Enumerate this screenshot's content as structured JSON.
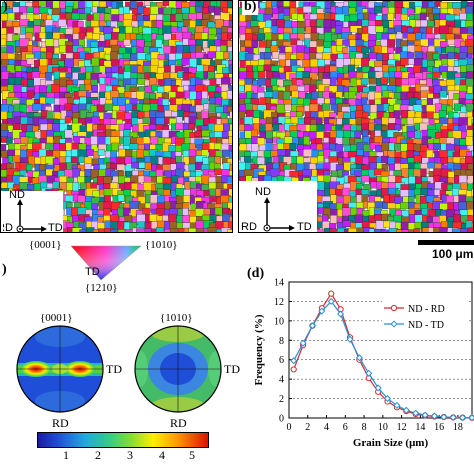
{
  "panels": {
    "a": {
      "label": ")"
    },
    "b": {
      "label": "b)"
    },
    "c": {
      "label": ")"
    },
    "d": {
      "label": "(d)"
    }
  },
  "ebsd_axes": {
    "nd": "ND",
    "rd": "RD",
    "td": "TD"
  },
  "scale_bar": {
    "text": "100 μm"
  },
  "ipf_key": {
    "corner_0001": "{0001}",
    "corner_10m10": "{1010}",
    "corner_m12m10": "{1210}",
    "td_label": "TD"
  },
  "pole_figures": {
    "left": {
      "title": "{0001}",
      "right_label": "TD",
      "bottom_label": "RD"
    },
    "right": {
      "title": "{1010}",
      "right_label": "TD",
      "bottom_label": "RD"
    },
    "colorbar_ticks": [
      "1",
      "2",
      "3",
      "4",
      "5"
    ]
  },
  "colors": {
    "nd_rd": "#d62b2b",
    "nd_td": "#2b8fd6"
  },
  "chart_data": {
    "type": "line",
    "title": "",
    "xlabel": "Grain Size (μm)",
    "ylabel": "Frequency (%)",
    "xlim": [
      0,
      19.5
    ],
    "ylim": [
      0,
      14
    ],
    "x_ticks": [
      "0",
      "2",
      "4",
      "6",
      "8",
      "10",
      "12",
      "14",
      "16",
      "18"
    ],
    "y_ticks": [
      "0",
      "2",
      "4",
      "6",
      "8",
      "10",
      "12",
      "14"
    ],
    "grid": "horizontal dashed",
    "legend_position": "right",
    "series": [
      {
        "name": "ND - RD",
        "color": "#d62b2b",
        "x": [
          0.5,
          1.5,
          2.5,
          3.5,
          4.5,
          5.5,
          6.5,
          7.5,
          8.5,
          9.5,
          10.5,
          11.5,
          12.5,
          13.5,
          14.5,
          15.5,
          16.5,
          17.5,
          18.5,
          19.5
        ],
        "y": [
          5.0,
          7.5,
          9.5,
          11.3,
          12.8,
          11.2,
          8.3,
          6.0,
          4.1,
          2.7,
          1.7,
          1.1,
          0.7,
          0.4,
          0.25,
          0.15,
          0.1,
          0.06,
          0.04,
          0.02
        ]
      },
      {
        "name": "ND - TD",
        "color": "#2b8fd6",
        "x": [
          0.5,
          1.5,
          2.5,
          3.5,
          4.5,
          5.5,
          6.5,
          7.5,
          8.5,
          9.5,
          10.5,
          11.5,
          12.5,
          13.5,
          14.5,
          15.5,
          16.5,
          17.5,
          18.5,
          19.5
        ],
        "y": [
          5.9,
          7.7,
          9.5,
          11.0,
          12.0,
          10.7,
          8.1,
          6.2,
          4.6,
          3.1,
          2.0,
          1.3,
          0.8,
          0.5,
          0.3,
          0.2,
          0.1,
          0.06,
          0.04,
          0.02
        ]
      }
    ]
  }
}
